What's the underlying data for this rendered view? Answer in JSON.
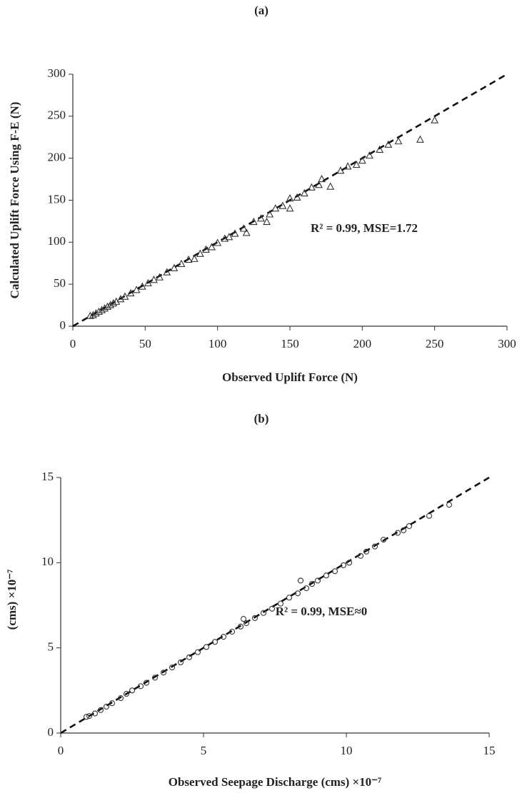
{
  "chart_data": [
    {
      "type": "scatter",
      "title": "(a)",
      "x_label": "Observed Uplift Force (N)",
      "y_label": "Calculated Uplift Force Using F-E (N)",
      "annotation": "R² = 0.99, MSE=1.72",
      "marker": "triangle",
      "color": "#333333",
      "x": [
        12,
        14,
        16,
        18,
        20,
        22,
        24,
        26,
        28,
        30,
        33,
        36,
        40,
        44,
        48,
        52,
        56,
        60,
        65,
        70,
        75,
        80,
        84,
        88,
        92,
        96,
        100,
        105,
        108,
        112,
        118,
        120,
        125,
        130,
        134,
        136,
        140,
        145,
        150,
        150,
        155,
        160,
        165,
        170,
        172,
        178,
        185,
        190,
        196,
        200,
        205,
        212,
        218,
        225,
        240,
        250
      ],
      "y": [
        12,
        13,
        15,
        17,
        19,
        21,
        23,
        25,
        27,
        29,
        32,
        35,
        39,
        43,
        47,
        51,
        55,
        58,
        64,
        69,
        74,
        79,
        80,
        86,
        91,
        94,
        99,
        104,
        106,
        110,
        116,
        111,
        124,
        128,
        124,
        133,
        140,
        143,
        140,
        152,
        153,
        158,
        165,
        168,
        175,
        166,
        185,
        190,
        192,
        197,
        203,
        210,
        216,
        220,
        222,
        245
      ],
      "xlim": [
        0,
        300
      ],
      "ylim": [
        0,
        300
      ],
      "xticks": [
        0,
        50,
        100,
        150,
        200,
        250,
        300
      ],
      "yticks": [
        0,
        50,
        100,
        150,
        200,
        250,
        300
      ]
    },
    {
      "type": "scatter",
      "title": "(b)",
      "x_label": "Observed Seepage Discharge (cms) ×10⁻⁷",
      "y_label": "(cms) ×10⁻⁷",
      "annotation": "R² = 0.99, MSE≈0",
      "marker": "circle",
      "color": "#333333",
      "x": [
        0.9,
        1.0,
        1.2,
        1.4,
        1.6,
        1.8,
        2.1,
        2.3,
        2.5,
        2.8,
        3.0,
        3.3,
        3.6,
        3.9,
        4.2,
        4.5,
        4.8,
        5.1,
        5.4,
        5.7,
        6.0,
        6.3,
        6.4,
        6.5,
        6.8,
        7.1,
        7.4,
        7.7,
        8.0,
        8.3,
        8.4,
        8.6,
        8.8,
        9.0,
        9.3,
        9.6,
        9.9,
        10.1,
        10.5,
        10.7,
        11.0,
        11.3,
        11.8,
        12.0,
        12.2,
        12.9,
        13.6
      ],
      "y": [
        0.95,
        1.0,
        1.15,
        1.35,
        1.55,
        1.75,
        2.05,
        2.3,
        2.5,
        2.75,
        2.95,
        3.25,
        3.55,
        3.85,
        4.15,
        4.45,
        4.75,
        5.05,
        5.35,
        5.65,
        5.95,
        6.25,
        6.7,
        6.45,
        6.75,
        7.05,
        7.3,
        7.6,
        7.95,
        8.2,
        8.95,
        8.5,
        8.75,
        8.95,
        9.25,
        9.5,
        9.85,
        10.0,
        10.4,
        10.65,
        10.95,
        11.35,
        11.75,
        11.9,
        12.15,
        12.75,
        13.4
      ],
      "xlim": [
        0,
        15
      ],
      "ylim": [
        0,
        15
      ],
      "xticks": [
        0,
        5,
        10,
        15
      ],
      "yticks": [
        0,
        5,
        10,
        15
      ]
    }
  ]
}
